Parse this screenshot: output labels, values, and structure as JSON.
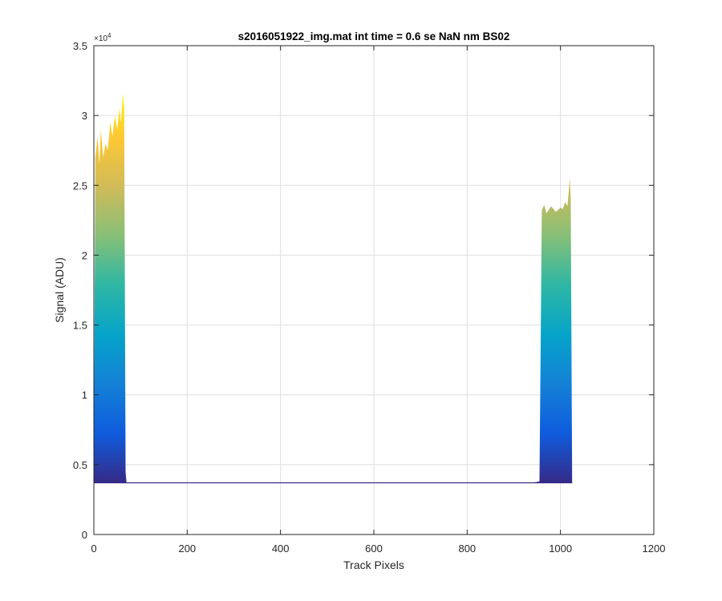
{
  "chart_data": {
    "type": "area",
    "title": "s2016051922_img.mat int time = 0.6 se  NaN nm BS02",
    "xlabel": "Track Pixels",
    "ylabel": "Signal (ADU)",
    "xlim": [
      0,
      1200
    ],
    "ylim": [
      0,
      35000
    ],
    "x_ticks": [
      0,
      200,
      400,
      600,
      800,
      1000,
      1200
    ],
    "y_ticks": [
      0,
      5000,
      10000,
      15000,
      20000,
      25000,
      30000,
      35000
    ],
    "y_tick_labels": [
      "0",
      "0.5",
      "1",
      "1.5",
      "2",
      "2.5",
      "3",
      "3.5"
    ],
    "y_exponent_label": "×10",
    "y_exponent_power": "4",
    "grid": true,
    "colormap": [
      "#352a87",
      "#0f5cdd",
      "#1481d6",
      "#06a4ca",
      "#2eb7a4",
      "#87bf77",
      "#d1bb59",
      "#fec832",
      "#f9fb0e"
    ],
    "baseline": 3700,
    "series": [
      {
        "x": [
          0,
          3,
          8,
          12,
          15,
          20,
          25,
          30,
          35,
          40,
          45,
          50,
          55,
          58,
          62,
          65,
          68,
          70,
          80,
          200,
          400,
          600,
          800,
          940,
          955
        ],
        "y": [
          3800,
          27000,
          28500,
          26500,
          29000,
          27000,
          28000,
          27500,
          29500,
          28500,
          30000,
          29000,
          30500,
          29500,
          31600,
          30500,
          4500,
          3700,
          3700,
          3700,
          3700,
          3700,
          3700,
          3700,
          3800
        ]
      },
      {
        "x": [
          955,
          960,
          965,
          970,
          980,
          990,
          1000,
          1005,
          1010,
          1015,
          1020,
          1022,
          1025
        ],
        "y": [
          3800,
          23200,
          23600,
          23000,
          23500,
          23100,
          23400,
          23300,
          23800,
          23500,
          25500,
          24000,
          3700
        ]
      }
    ]
  }
}
